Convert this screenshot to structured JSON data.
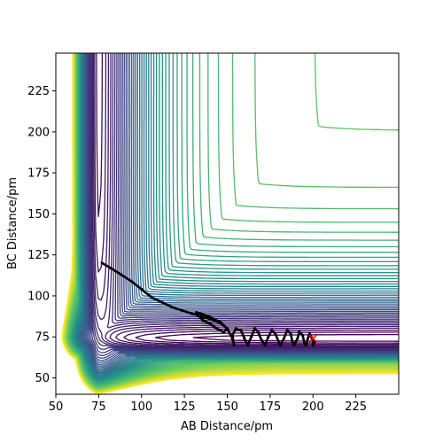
{
  "chart_data": {
    "type": "contour",
    "title": "",
    "xlabel": "AB Distance/pm",
    "ylabel": "BC Distance/pm",
    "xlim": [
      50,
      250
    ],
    "ylim": [
      40,
      248
    ],
    "xticks": [
      50,
      75,
      100,
      125,
      150,
      175,
      200,
      225
    ],
    "yticks": [
      50,
      75,
      100,
      125,
      150,
      175,
      200,
      225
    ],
    "grid": false,
    "legend": "none",
    "colormap": "viridis",
    "colormap_stops": [
      "#440154",
      "#3b528b",
      "#21918c",
      "#5ec962",
      "#fde725"
    ],
    "contour_levels": 60,
    "surface": {
      "model": "LEPS-like collinear A + BC potential",
      "entrance_valley": {
        "ab_min_pm": 200,
        "bc_eq_pm": 74
      },
      "exit_valley": {
        "ab_eq_pm": 74,
        "bc_min_pm": 248
      }
    },
    "trajectory": {
      "color": "#000000",
      "start": {
        "x": 77,
        "y": 120
      },
      "points": [
        [
          77,
          120
        ],
        [
          82,
          117
        ],
        [
          88,
          113
        ],
        [
          94,
          109
        ],
        [
          100,
          104
        ],
        [
          106,
          99
        ],
        [
          112,
          96
        ],
        [
          118,
          93
        ],
        [
          124,
          91
        ],
        [
          130,
          89
        ],
        [
          136,
          87
        ],
        [
          140,
          86
        ],
        [
          145,
          84
        ],
        [
          148,
          82
        ],
        [
          150,
          80
        ],
        [
          148,
          78
        ],
        [
          144,
          80
        ],
        [
          140,
          83
        ],
        [
          136,
          85
        ],
        [
          133,
          88
        ],
        [
          132,
          90
        ],
        [
          135,
          89
        ],
        [
          140,
          87
        ],
        [
          146,
          84
        ],
        [
          150,
          80
        ],
        [
          153,
          74
        ],
        [
          154,
          70
        ],
        [
          153,
          76
        ],
        [
          155,
          80
        ],
        [
          158,
          79
        ],
        [
          160,
          74
        ],
        [
          162,
          70
        ],
        [
          164,
          75
        ],
        [
          166,
          80
        ],
        [
          168,
          78
        ],
        [
          170,
          73
        ],
        [
          172,
          70
        ],
        [
          174,
          75
        ],
        [
          176,
          79
        ],
        [
          178,
          77
        ],
        [
          180,
          72
        ],
        [
          181,
          70
        ],
        [
          183,
          74
        ],
        [
          185,
          79
        ],
        [
          187,
          77
        ],
        [
          188,
          72
        ],
        [
          189,
          70
        ],
        [
          191,
          74
        ],
        [
          192,
          78
        ],
        [
          194,
          76
        ],
        [
          195,
          71
        ],
        [
          196,
          70
        ],
        [
          197,
          74
        ],
        [
          198,
          77
        ],
        [
          199,
          75
        ],
        [
          200,
          72
        ],
        [
          200,
          70
        ],
        [
          201,
          72
        ]
      ]
    },
    "endpoint_marker": {
      "x": 200,
      "y": 74,
      "symbol": "x",
      "color": "#ff0000"
    }
  }
}
